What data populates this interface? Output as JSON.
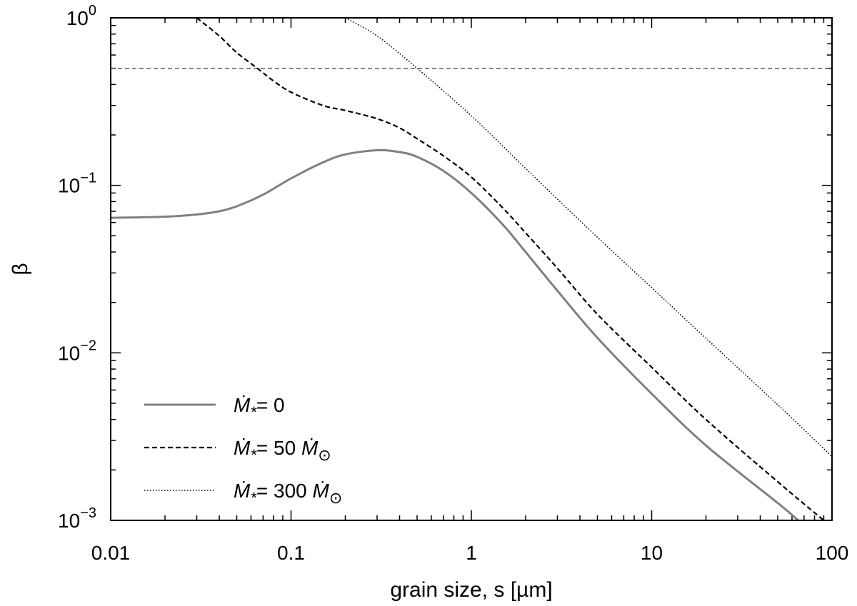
{
  "chart_data": {
    "type": "line",
    "xlabel": "grain size, s [µm]",
    "ylabel": "β",
    "x_scale": "log",
    "y_scale": "log",
    "xlim": [
      0.01,
      100
    ],
    "ylim": [
      0.001,
      1
    ],
    "x_ticks": [
      {
        "value": 0.01,
        "label": "0.01"
      },
      {
        "value": 0.1,
        "label": "0.1"
      },
      {
        "value": 1,
        "label": "1"
      },
      {
        "value": 10,
        "label": "10"
      },
      {
        "value": 100,
        "label": "100"
      }
    ],
    "y_ticks": [
      {
        "value": 0.001,
        "base": "10",
        "exp": "−3"
      },
      {
        "value": 0.01,
        "base": "10",
        "exp": "−2"
      },
      {
        "value": 0.1,
        "base": "10",
        "exp": "−1"
      },
      {
        "value": 1,
        "base": "10",
        "exp": "0"
      }
    ],
    "grid": false,
    "legend_position": "bottom-left",
    "reference_lines": [
      {
        "orientation": "horizontal",
        "y": 0.5,
        "color": "#444444",
        "dash": "dashed-thin"
      }
    ],
    "series": [
      {
        "legend_value": "0",
        "legend_unit": "",
        "color": "#808080",
        "style": "solid",
        "points": [
          [
            0.01,
            0.064
          ],
          [
            0.02,
            0.065
          ],
          [
            0.03,
            0.067
          ],
          [
            0.04,
            0.07
          ],
          [
            0.05,
            0.075
          ],
          [
            0.07,
            0.088
          ],
          [
            0.1,
            0.11
          ],
          [
            0.15,
            0.137
          ],
          [
            0.2,
            0.153
          ],
          [
            0.3,
            0.162
          ],
          [
            0.4,
            0.158
          ],
          [
            0.5,
            0.148
          ],
          [
            0.7,
            0.122
          ],
          [
            1.0,
            0.09
          ],
          [
            1.5,
            0.058
          ],
          [
            2.0,
            0.04
          ],
          [
            3.0,
            0.0235
          ],
          [
            5.0,
            0.0123
          ],
          [
            10.0,
            0.0057
          ],
          [
            20.0,
            0.0028
          ],
          [
            50.0,
            0.00127
          ],
          [
            65.0,
            0.001
          ]
        ]
      },
      {
        "legend_value": "50",
        "legend_unit": "Ṁ⊙",
        "color": "#000000",
        "style": "dashed",
        "points": [
          [
            0.03,
            1.0
          ],
          [
            0.04,
            0.78
          ],
          [
            0.05,
            0.62
          ],
          [
            0.065,
            0.5
          ],
          [
            0.08,
            0.42
          ],
          [
            0.1,
            0.36
          ],
          [
            0.15,
            0.3
          ],
          [
            0.2,
            0.28
          ],
          [
            0.3,
            0.25
          ],
          [
            0.4,
            0.22
          ],
          [
            0.5,
            0.19
          ],
          [
            0.7,
            0.15
          ],
          [
            1.0,
            0.112
          ],
          [
            1.5,
            0.073
          ],
          [
            2.0,
            0.052
          ],
          [
            3.0,
            0.032
          ],
          [
            5.0,
            0.017
          ],
          [
            10.0,
            0.0082
          ],
          [
            20.0,
            0.004
          ],
          [
            50.0,
            0.0017
          ],
          [
            90.0,
            0.001
          ]
        ]
      },
      {
        "legend_value": "300",
        "legend_unit": "Ṁ⊙",
        "color": "#000000",
        "style": "dotted",
        "points": [
          [
            0.2,
            1.0
          ],
          [
            0.3,
            0.78
          ],
          [
            0.5,
            0.5
          ],
          [
            1.0,
            0.26
          ],
          [
            2.0,
            0.126
          ],
          [
            5.0,
            0.049
          ],
          [
            10.0,
            0.0245
          ],
          [
            20.0,
            0.0122
          ],
          [
            50.0,
            0.0049
          ],
          [
            100.0,
            0.0024
          ]
        ]
      }
    ]
  }
}
